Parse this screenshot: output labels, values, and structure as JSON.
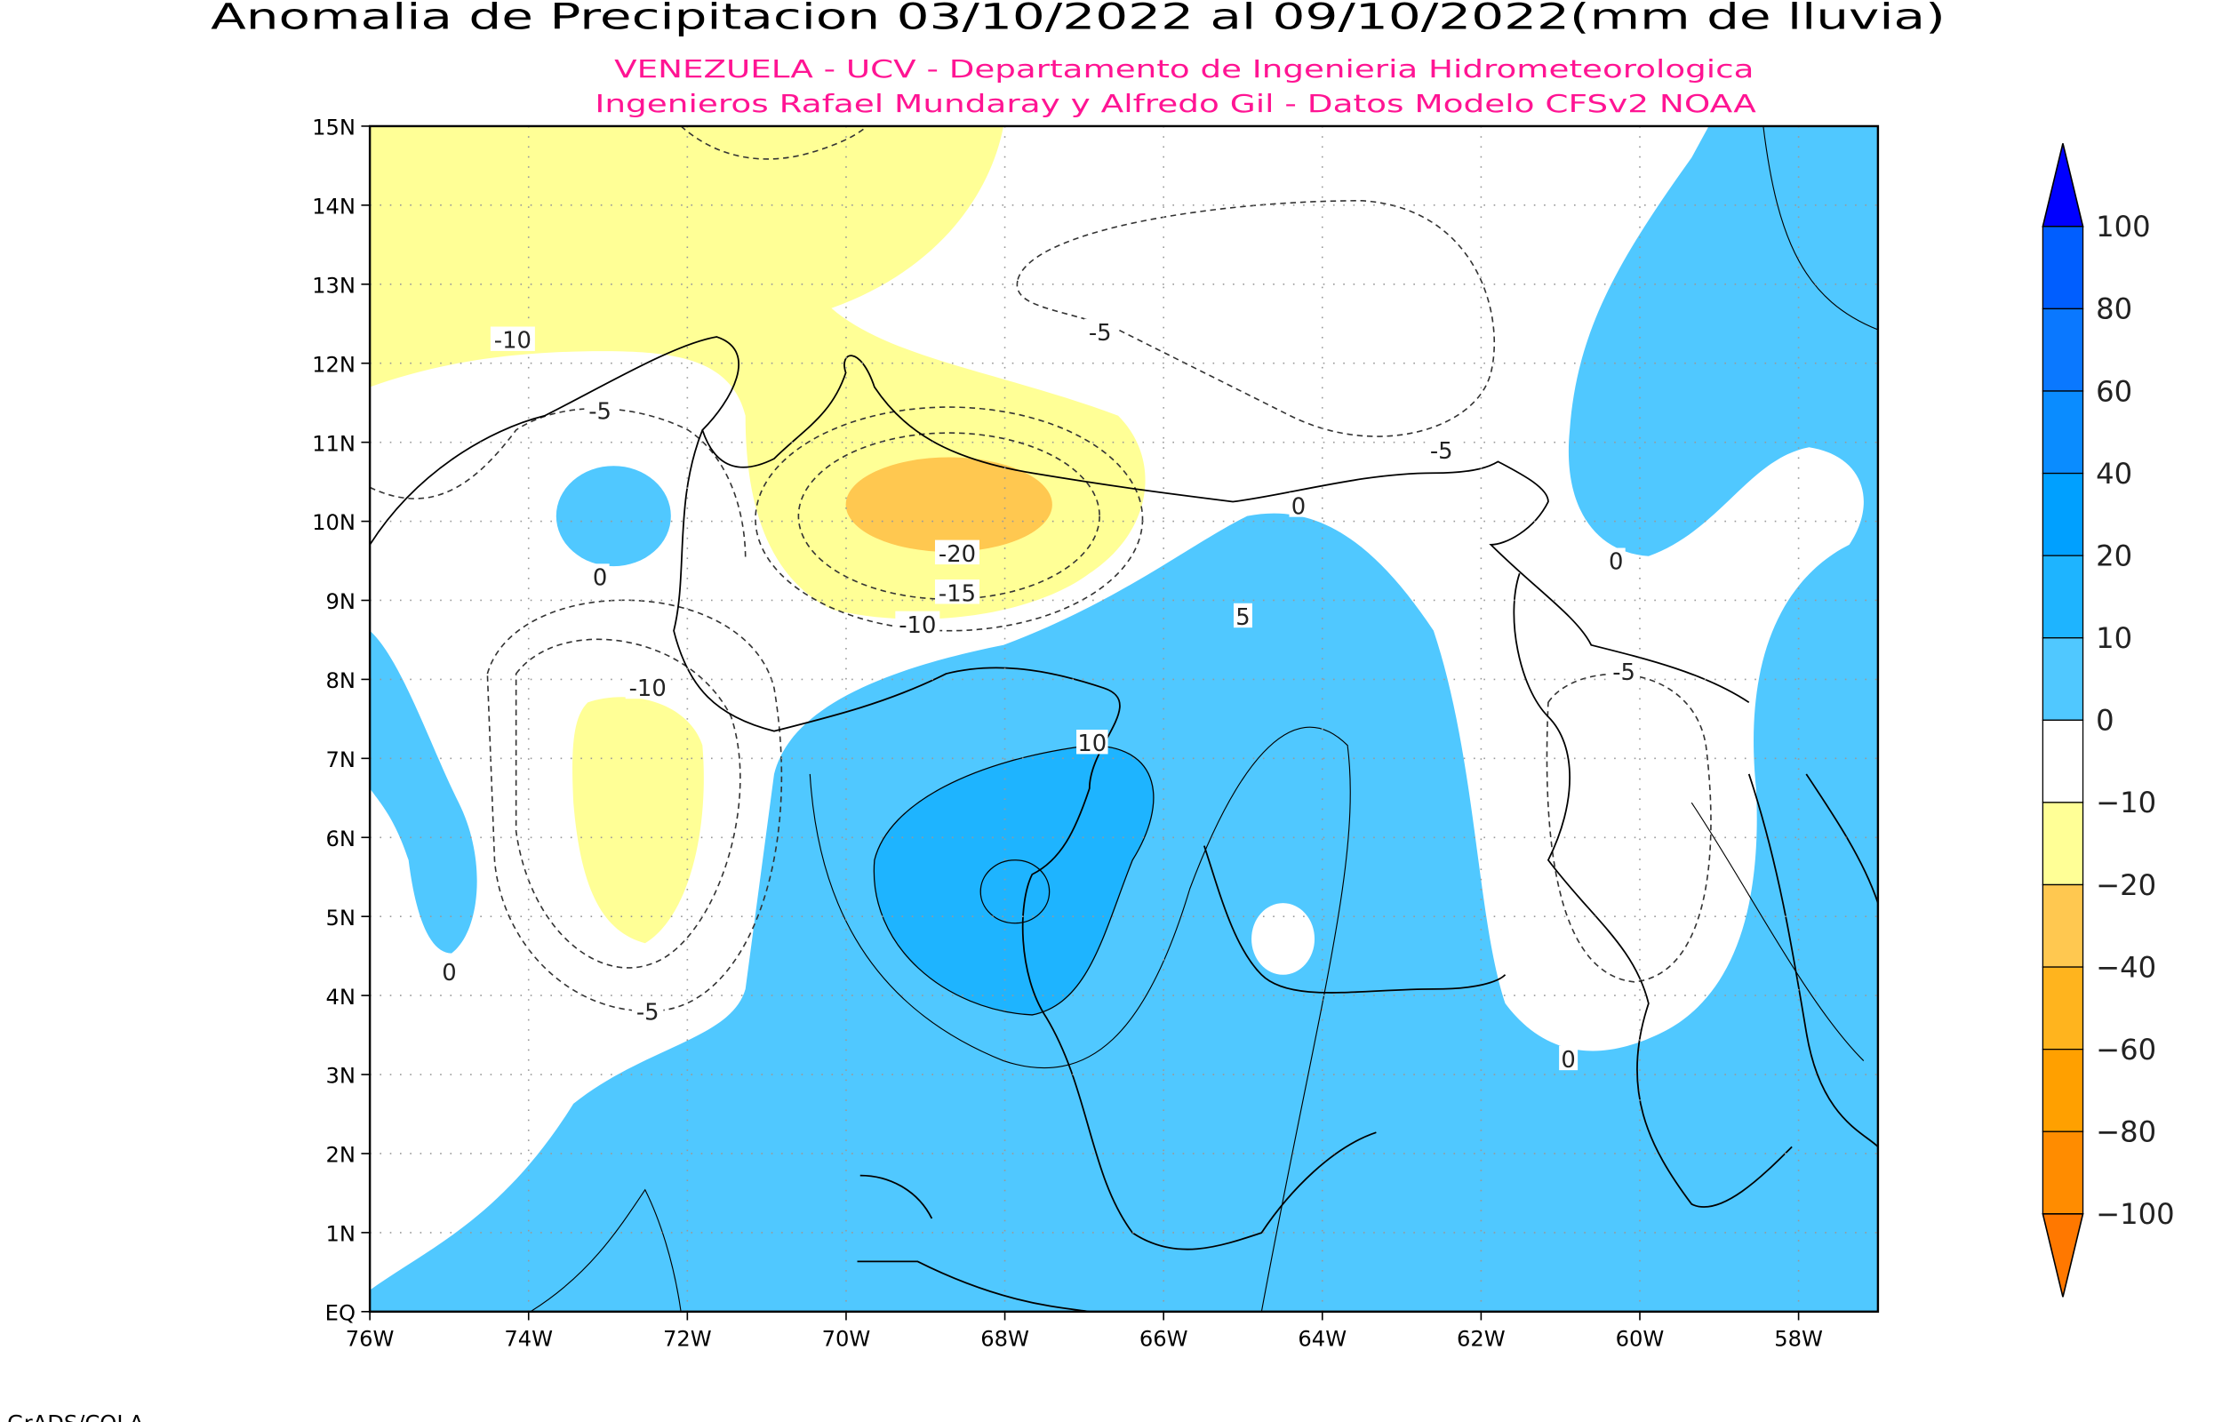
{
  "title": "Anomalia de Precipitacion 03/10/2022 al 09/10/2022(mm de lluvia)",
  "subtitle1": "VENEZUELA - UCV - Departamento de Ingenieria Hidrometeorologica",
  "subtitle2": "Ingenieros Rafael Mundaray y Alfredo Gil - Datos Modelo CFSv2 NOAA",
  "credit": "GrADS/COLA",
  "colors": {
    "subtitle": "#ff1493"
  },
  "chart_data": {
    "type": "contour-map",
    "xlim": [
      -76,
      -57
    ],
    "ylim": [
      0,
      15
    ],
    "x_ticks": [
      "76W",
      "74W",
      "72W",
      "70W",
      "68W",
      "66W",
      "64W",
      "62W",
      "60W",
      "58W"
    ],
    "y_ticks": [
      "EQ",
      "1N",
      "2N",
      "3N",
      "4N",
      "5N",
      "6N",
      "7N",
      "8N",
      "9N",
      "10N",
      "11N",
      "12N",
      "13N",
      "14N",
      "15N"
    ],
    "grid": true,
    "colorbar": {
      "position": "right",
      "labels": [
        "100",
        "80",
        "60",
        "40",
        "20",
        "10",
        "0",
        "-10",
        "-20",
        "-40",
        "-60",
        "-80",
        "-100"
      ],
      "colors": [
        "#0000ff",
        "#005eff",
        "#0a78ff",
        "#0a8cff",
        "#00a0ff",
        "#1eb4ff",
        "#50c8ff",
        "#ffffff",
        "#ffff96",
        "#ffc850",
        "#ffb41e",
        "#ffa000",
        "#ff8c00",
        "#ff7800"
      ]
    },
    "contour_labels": [
      {
        "lon": -74.2,
        "lat": 12.3,
        "text": "-10"
      },
      {
        "lon": -73.1,
        "lat": 11.4,
        "text": "-5"
      },
      {
        "lon": -73.1,
        "lat": 9.3,
        "text": "0"
      },
      {
        "lon": -72.5,
        "lat": 7.9,
        "text": "-10"
      },
      {
        "lon": -72.5,
        "lat": 3.8,
        "text": "-5"
      },
      {
        "lon": -75.0,
        "lat": 4.3,
        "text": "0"
      },
      {
        "lon": -68.6,
        "lat": 9.6,
        "text": "-20"
      },
      {
        "lon": -68.6,
        "lat": 9.1,
        "text": "-15"
      },
      {
        "lon": -69.1,
        "lat": 8.7,
        "text": "-10"
      },
      {
        "lon": -66.8,
        "lat": 12.4,
        "text": "-5"
      },
      {
        "lon": -62.5,
        "lat": 10.9,
        "text": "-5"
      },
      {
        "lon": -60.3,
        "lat": 9.5,
        "text": "0"
      },
      {
        "lon": -60.2,
        "lat": 8.1,
        "text": "-5"
      },
      {
        "lon": -60.9,
        "lat": 3.2,
        "text": "0"
      },
      {
        "lon": -65.0,
        "lat": 8.8,
        "text": "5"
      },
      {
        "lon": -66.9,
        "lat": 7.2,
        "text": "10"
      },
      {
        "lon": -64.3,
        "lat": 10.2,
        "text": "0"
      }
    ]
  }
}
